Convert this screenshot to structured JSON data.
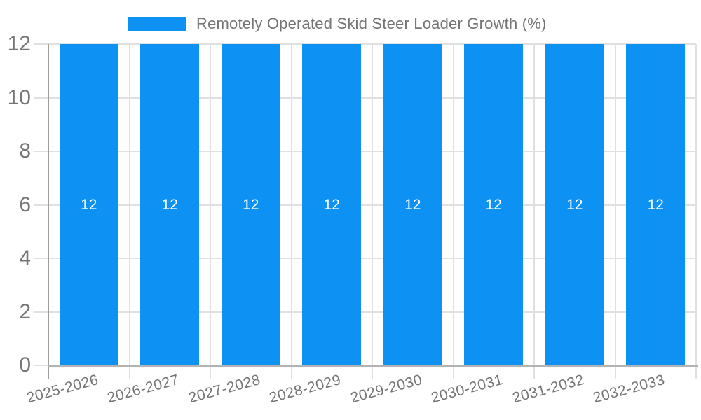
{
  "legend": {
    "label": "Remotely Operated Skid Steer Loader Growth (%)"
  },
  "chart_data": {
    "type": "bar",
    "title": "Remotely Operated Skid Steer Loader Growth (%)",
    "categories": [
      "2025-2026",
      "2026-2027",
      "2027-2028",
      "2028-2029",
      "2029-2030",
      "2030-2031",
      "2031-2032",
      "2032-2033"
    ],
    "series": [
      {
        "name": "Remotely Operated Skid Steer Loader Growth (%)",
        "values": [
          12,
          12,
          12,
          12,
          12,
          12,
          12,
          12
        ]
      }
    ],
    "values": [
      12,
      12,
      12,
      12,
      12,
      12,
      12,
      12
    ],
    "bar_labels": [
      "12",
      "12",
      "12",
      "12",
      "12",
      "12",
      "12",
      "12"
    ],
    "xlabel": "",
    "ylabel": "",
    "ylim": [
      0,
      12
    ],
    "yticks": [
      0,
      2,
      4,
      6,
      8,
      10,
      12
    ],
    "grid": true,
    "legend_position": "top",
    "x_tick_rotation_deg": -15,
    "colors": {
      "bar": "#0d92f4",
      "grid": "#e0e0e0",
      "axis": "#9e9e9e",
      "axis_bottom": "#b3b3b3",
      "tick_text": "#757575",
      "bar_label": "#ffffff",
      "background": "#ffffff"
    }
  }
}
